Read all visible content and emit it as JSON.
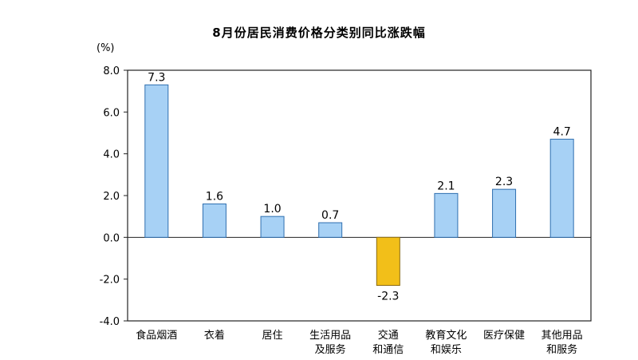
{
  "title": "8月份居民消费价格分类别同比涨跌幅",
  "chart_data": {
    "type": "bar",
    "title": "8月份居民消费价格分类别同比涨跌幅",
    "unit": "(%)",
    "ylim": [
      -4.0,
      8.0
    ],
    "yticks": [
      "8.0",
      "6.0",
      "4.0",
      "2.0",
      "0.0",
      "-2.0",
      "-4.0"
    ],
    "categories": [
      [
        "食品烟酒"
      ],
      [
        "衣着"
      ],
      [
        "居住"
      ],
      [
        "生活用品",
        "及服务"
      ],
      [
        "交通",
        "和通信"
      ],
      [
        "教育文化",
        "和娱乐"
      ],
      [
        "医疗保健"
      ],
      [
        "其他用品",
        "和服务"
      ]
    ],
    "values": [
      7.3,
      1.6,
      1.0,
      0.7,
      -2.3,
      2.1,
      2.3,
      4.7
    ],
    "value_labels": [
      "7.3",
      "1.6",
      "1.0",
      "0.7",
      "-2.3",
      "2.1",
      "2.3",
      "4.7"
    ],
    "colors": {
      "positive": "#a7d1f5",
      "positive_stroke": "#2f6fb0",
      "negative": "#f2bf19",
      "negative_stroke": "#8a6a10"
    }
  }
}
